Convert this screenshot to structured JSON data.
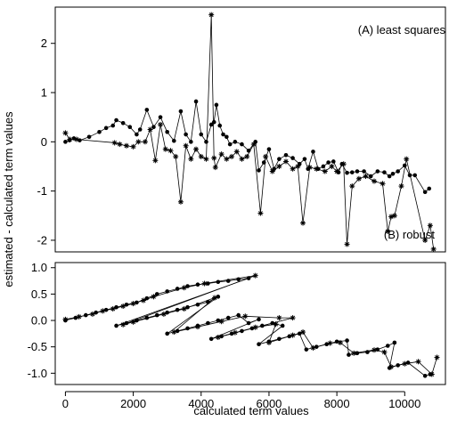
{
  "chart_data": {
    "type": "scatter",
    "xlabel": "calculated term values",
    "ylabel": "estimated - calculated term values",
    "xlim": [
      -300,
      11200
    ],
    "x_ticks": [
      0,
      2000,
      4000,
      6000,
      8000,
      10000
    ],
    "panels": [
      {
        "label": "(A) least squares",
        "ylim": [
          -2.2,
          2.7
        ],
        "y_ticks": [
          -2,
          -1,
          0,
          1,
          2
        ],
        "series": [
          {
            "marker": "dot",
            "points": [
              [
                0,
                0.0
              ],
              [
                120,
                0.03
              ],
              [
                250,
                0.07
              ],
              [
                420,
                0.03
              ],
              [
                700,
                0.1
              ],
              [
                1000,
                0.2
              ],
              [
                1200,
                0.28
              ],
              [
                1400,
                0.33
              ],
              [
                1500,
                0.44
              ],
              [
                1700,
                0.38
              ],
              [
                1900,
                0.3
              ],
              [
                2100,
                0.15
              ],
              [
                2200,
                0.25
              ],
              [
                2400,
                0.65
              ],
              [
                2600,
                0.3
              ],
              [
                2800,
                0.5
              ],
              [
                3000,
                0.2
              ],
              [
                3200,
                0.02
              ],
              [
                3400,
                0.62
              ],
              [
                3550,
                0.15
              ],
              [
                3700,
                0.0
              ],
              [
                3850,
                0.82
              ],
              [
                4000,
                0.15
              ],
              [
                4150,
                0.0
              ],
              [
                4300,
                0.35
              ],
              [
                4380,
                0.4
              ],
              [
                4450,
                0.75
              ],
              [
                4550,
                0.33
              ],
              [
                4650,
                0.15
              ],
              [
                4750,
                0.1
              ],
              [
                4850,
                -0.05
              ],
              [
                5000,
                0.0
              ],
              [
                5200,
                -0.05
              ],
              [
                5400,
                -0.18
              ],
              [
                5600,
                0.0
              ],
              [
                5700,
                -0.58
              ],
              [
                5850,
                -0.42
              ],
              [
                6000,
                -0.15
              ],
              [
                6150,
                -0.55
              ],
              [
                6300,
                -0.35
              ],
              [
                6500,
                -0.27
              ],
              [
                6700,
                -0.33
              ],
              [
                6900,
                -0.45
              ],
              [
                7050,
                -0.35
              ],
              [
                7150,
                -0.55
              ],
              [
                7300,
                -0.2
              ],
              [
                7450,
                -0.55
              ],
              [
                7600,
                -0.5
              ],
              [
                7750,
                -0.42
              ],
              [
                7900,
                -0.4
              ],
              [
                8050,
                -0.62
              ],
              [
                8150,
                -0.45
              ],
              [
                8300,
                -0.63
              ],
              [
                8450,
                -0.62
              ],
              [
                8600,
                -0.6
              ],
              [
                8800,
                -0.6
              ],
              [
                9000,
                -0.7
              ],
              [
                9200,
                -0.6
              ],
              [
                9400,
                -0.62
              ],
              [
                9550,
                -0.7
              ],
              [
                9650,
                -0.65
              ],
              [
                9800,
                -0.6
              ],
              [
                10000,
                -0.48
              ],
              [
                10150,
                -0.68
              ],
              [
                10300,
                -0.68
              ],
              [
                10600,
                -1.02
              ],
              [
                10720,
                -0.95
              ]
            ]
          },
          {
            "marker": "asterisk",
            "points": [
              [
                0,
                0.18
              ],
              [
                130,
                0.05
              ],
              [
                330,
                0.05
              ],
              [
                1450,
                -0.02
              ],
              [
                1600,
                -0.05
              ],
              [
                1800,
                -0.08
              ],
              [
                2000,
                -0.1
              ],
              [
                2150,
                0.0
              ],
              [
                2350,
                0.0
              ],
              [
                2500,
                0.25
              ],
              [
                2650,
                -0.38
              ],
              [
                2800,
                0.35
              ],
              [
                2950,
                -0.15
              ],
              [
                3100,
                -0.18
              ],
              [
                3250,
                -0.3
              ],
              [
                3400,
                -1.22
              ],
              [
                3550,
                -0.08
              ],
              [
                3700,
                -0.35
              ],
              [
                3850,
                -0.15
              ],
              [
                4000,
                -0.3
              ],
              [
                4150,
                -0.35
              ],
              [
                4300,
                2.58
              ],
              [
                4380,
                -0.33
              ],
              [
                4420,
                -0.52
              ],
              [
                4600,
                -0.25
              ],
              [
                4750,
                -0.35
              ],
              [
                4900,
                -0.3
              ],
              [
                5050,
                -0.2
              ],
              [
                5200,
                -0.35
              ],
              [
                5350,
                -0.3
              ],
              [
                5550,
                -0.05
              ],
              [
                5750,
                -1.45
              ],
              [
                5900,
                -0.3
              ],
              [
                6100,
                -0.6
              ],
              [
                6300,
                -0.5
              ],
              [
                6500,
                -0.4
              ],
              [
                6700,
                -0.55
              ],
              [
                6850,
                -0.5
              ],
              [
                7000,
                -1.65
              ],
              [
                7200,
                -0.52
              ],
              [
                7400,
                -0.55
              ],
              [
                7650,
                -0.6
              ],
              [
                7850,
                -0.5
              ],
              [
                8000,
                -0.6
              ],
              [
                8200,
                -0.45
              ],
              [
                8300,
                -2.08
              ],
              [
                8450,
                -0.9
              ],
              [
                8650,
                -0.75
              ],
              [
                8850,
                -0.7
              ],
              [
                9100,
                -0.8
              ],
              [
                9350,
                -0.85
              ],
              [
                9500,
                -1.82
              ],
              [
                9600,
                -1.52
              ],
              [
                9700,
                -1.5
              ],
              [
                9900,
                -0.9
              ],
              [
                10050,
                -0.35
              ],
              [
                10600,
                -2.0
              ],
              [
                10750,
                -1.7
              ],
              [
                10850,
                -2.18
              ]
            ]
          }
        ]
      },
      {
        "label": "(B) robust",
        "ylim": [
          -1.18,
          1.08
        ],
        "y_ticks": [
          -1.0,
          -0.5,
          0.0,
          0.5,
          1.0
        ],
        "y_tick_labels": [
          "-1.0",
          "-0.5",
          "0.0",
          "0.5",
          "1.0"
        ],
        "series": [
          {
            "marker": "dot",
            "points": [
              [
                0,
                0.0
              ],
              [
                300,
                0.05
              ],
              [
                600,
                0.1
              ],
              [
                900,
                0.15
              ],
              [
                1200,
                0.2
              ],
              [
                1500,
                0.25
              ],
              [
                1800,
                0.3
              ],
              [
                2100,
                0.34
              ],
              [
                2400,
                0.42
              ],
              [
                2700,
                0.5
              ],
              [
                3000,
                0.55
              ],
              [
                3300,
                0.6
              ],
              [
                3600,
                0.65
              ],
              [
                3900,
                0.68
              ],
              [
                4200,
                0.7
              ],
              [
                4500,
                0.73
              ],
              [
                4800,
                0.75
              ],
              [
                5100,
                0.78
              ],
              [
                5400,
                0.8
              ],
              [
                1500,
                -0.1
              ],
              [
                1800,
                -0.05
              ],
              [
                2100,
                0.0
              ],
              [
                2400,
                0.05
              ],
              [
                2700,
                0.1
              ],
              [
                3000,
                0.15
              ],
              [
                3300,
                0.2
              ],
              [
                3600,
                0.25
              ],
              [
                3900,
                0.3
              ],
              [
                4200,
                0.35
              ],
              [
                4500,
                0.45
              ],
              [
                3000,
                -0.25
              ],
              [
                3300,
                -0.2
              ],
              [
                3600,
                -0.15
              ],
              [
                3900,
                -0.1
              ],
              [
                4200,
                -0.05
              ],
              [
                4500,
                0.0
              ],
              [
                4800,
                0.05
              ],
              [
                5100,
                0.1
              ],
              [
                5400,
                -0.05
              ],
              [
                5700,
                0.02
              ],
              [
                4300,
                -0.35
              ],
              [
                4600,
                -0.3
              ],
              [
                4900,
                -0.25
              ],
              [
                5200,
                -0.2
              ],
              [
                5500,
                -0.15
              ],
              [
                5800,
                -0.1
              ],
              [
                6100,
                -0.05
              ],
              [
                6400,
                -0.1
              ],
              [
                5700,
                -0.45
              ],
              [
                6000,
                -0.4
              ],
              [
                6300,
                -0.35
              ],
              [
                6600,
                -0.3
              ],
              [
                6900,
                -0.25
              ],
              [
                7100,
                -0.55
              ],
              [
                7400,
                -0.5
              ],
              [
                7700,
                -0.45
              ],
              [
                8000,
                -0.4
              ],
              [
                8300,
                -0.38
              ],
              [
                8350,
                -0.65
              ],
              [
                8600,
                -0.62
              ],
              [
                8900,
                -0.6
              ],
              [
                9200,
                -0.55
              ],
              [
                9500,
                -0.48
              ],
              [
                9700,
                -0.42
              ],
              [
                9550,
                -0.9
              ],
              [
                9800,
                -0.85
              ],
              [
                10100,
                -0.8
              ],
              [
                10600,
                -1.05
              ],
              [
                10750,
                -1.02
              ]
            ]
          },
          {
            "marker": "asterisk",
            "points": [
              [
                0,
                0.02
              ],
              [
                400,
                0.07
              ],
              [
                800,
                0.12
              ],
              [
                1100,
                0.18
              ],
              [
                1400,
                0.22
              ],
              [
                1700,
                0.27
              ],
              [
                2000,
                0.32
              ],
              [
                2300,
                0.38
              ],
              [
                2600,
                0.45
              ],
              [
                3500,
                0.62
              ],
              [
                4100,
                0.7
              ],
              [
                5600,
                0.85
              ],
              [
                1700,
                -0.08
              ],
              [
                2000,
                -0.03
              ],
              [
                2900,
                0.12
              ],
              [
                3500,
                0.22
              ],
              [
                4400,
                0.43
              ],
              [
                3200,
                -0.22
              ],
              [
                3900,
                -0.12
              ],
              [
                4600,
                -0.02
              ],
              [
                5300,
                0.08
              ],
              [
                6300,
                0.05
              ],
              [
                6700,
                0.05
              ],
              [
                4500,
                -0.32
              ],
              [
                5000,
                -0.23
              ],
              [
                5600,
                -0.13
              ],
              [
                6200,
                -0.07
              ],
              [
                6000,
                -0.42
              ],
              [
                6700,
                -0.28
              ],
              [
                7000,
                -0.22
              ],
              [
                7300,
                -0.52
              ],
              [
                7800,
                -0.43
              ],
              [
                8100,
                -0.42
              ],
              [
                8500,
                -0.62
              ],
              [
                9100,
                -0.56
              ],
              [
                9400,
                -0.6
              ],
              [
                9600,
                -0.88
              ],
              [
                10000,
                -0.82
              ],
              [
                10400,
                -0.78
              ],
              [
                10800,
                -1.02
              ],
              [
                10950,
                -0.7
              ]
            ]
          }
        ]
      }
    ]
  }
}
